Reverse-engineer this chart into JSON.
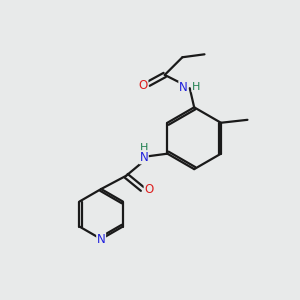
{
  "bg_color": "#e8eaea",
  "bond_color": "#1a1a1a",
  "N_color": "#2020dd",
  "O_color": "#dd2020",
  "H_color": "#208050",
  "line_width": 1.6,
  "figsize": [
    3.0,
    3.0
  ],
  "dpi": 100,
  "xlim": [
    0,
    10
  ],
  "ylim": [
    0,
    10
  ]
}
